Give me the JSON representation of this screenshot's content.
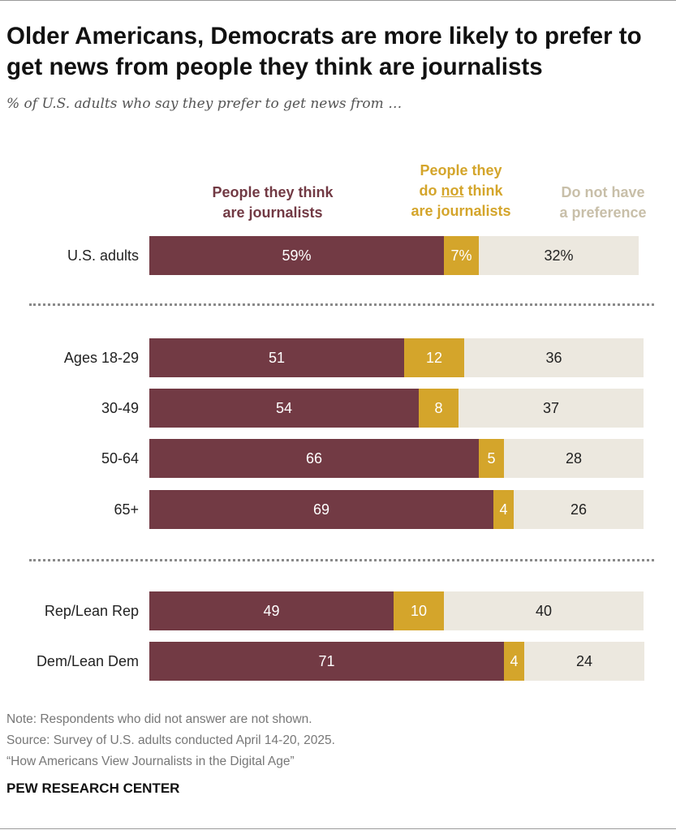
{
  "title": "Older Americans, Democrats are more likely to prefer to get news from people they think are journalists",
  "subtitle": "% of U.S. adults who say they prefer to get news from …",
  "colors": {
    "journalists": "#723a44",
    "not_journalists": "#d4a52b",
    "no_preference": "#ece8df",
    "legend_no_preference": "#c8bfa9"
  },
  "legend": {
    "journalists": [
      "People they think",
      "are journalists"
    ],
    "not_journalists_pre": "People they",
    "not_journalists_do": "do ",
    "not_journalists_not": "not",
    "not_journalists_think": " think",
    "not_journalists_post": "are journalists",
    "no_preference": [
      "Do not have",
      "a preference"
    ]
  },
  "chart_data": {
    "type": "bar",
    "orientation": "horizontal",
    "stacked": true,
    "title": "Older Americans, Democrats are more likely to prefer to get news from people they think are journalists",
    "subtitle": "% of U.S. adults who say they prefer to get news from …",
    "series_names": [
      "People they think are journalists",
      "People they do not think are journalists",
      "Do not have a preference"
    ],
    "xlim": [
      0,
      100
    ],
    "groups": [
      {
        "rows": [
          {
            "label": "U.S. adults",
            "values": [
              59,
              7,
              32
            ],
            "display": [
              "59%",
              "7%",
              "32%"
            ]
          }
        ]
      },
      {
        "rows": [
          {
            "label": "Ages 18-29",
            "values": [
              51,
              12,
              36
            ],
            "display": [
              "51",
              "12",
              "36"
            ]
          },
          {
            "label": "30-49",
            "values": [
              54,
              8,
              37
            ],
            "display": [
              "54",
              "8",
              "37"
            ]
          },
          {
            "label": "50-64",
            "values": [
              66,
              5,
              28
            ],
            "display": [
              "66",
              "5",
              "28"
            ]
          },
          {
            "label": "65+",
            "values": [
              69,
              4,
              26
            ],
            "display": [
              "69",
              "4",
              "26"
            ]
          }
        ]
      },
      {
        "rows": [
          {
            "label": "Rep/Lean Rep",
            "values": [
              49,
              10,
              40
            ],
            "display": [
              "49",
              "10",
              "40"
            ]
          },
          {
            "label": "Dem/Lean Dem",
            "values": [
              71,
              4,
              24
            ],
            "display": [
              "71",
              "4",
              "24"
            ]
          }
        ]
      }
    ]
  },
  "notes": [
    "Note: Respondents who did not answer are not shown.",
    "Source: Survey of U.S. adults conducted April 14-20, 2025.",
    "“How Americans View Journalists in the Digital Age”"
  ],
  "brand": "PEW RESEARCH CENTER"
}
